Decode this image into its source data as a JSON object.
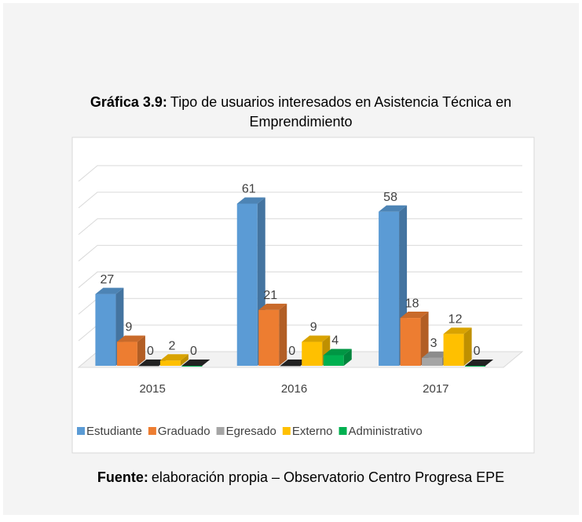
{
  "chart_data": {
    "type": "bar3d",
    "title_label": "Gráfica 3.9:",
    "title": "Tipo de usuarios interesados en Asistencia Técnica en Emprendimiento",
    "source_label": "Fuente:",
    "source": "elaboración propia – Observatorio Centro Progresa EPE",
    "categories": [
      "2015",
      "2016",
      "2017"
    ],
    "series": [
      {
        "name": "Estudiante",
        "color": "#5b9bd5",
        "values": [
          27,
          61,
          58
        ]
      },
      {
        "name": "Graduado",
        "color": "#ed7d31",
        "values": [
          9,
          21,
          18
        ]
      },
      {
        "name": "Egresado",
        "color": "#a5a5a5",
        "values": [
          0,
          0,
          3
        ]
      },
      {
        "name": "Externo",
        "color": "#ffc000",
        "values": [
          2,
          9,
          12
        ]
      },
      {
        "name": "Administrativo",
        "color": "#00b050",
        "values": [
          0,
          4,
          0
        ]
      }
    ],
    "ylim": [
      0,
      70
    ],
    "yticks": [
      0,
      10,
      20,
      30,
      40,
      50,
      60,
      70
    ],
    "grid": true,
    "legend": "bottom"
  }
}
